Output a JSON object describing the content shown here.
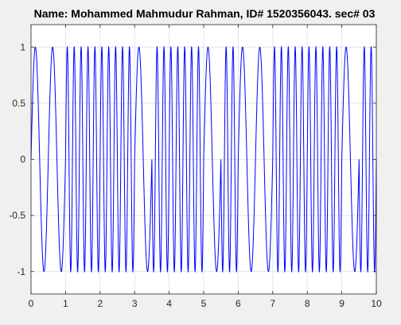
{
  "chart_data": {
    "type": "line",
    "title": "Name: Mohammed Mahmudur Rahman, ID# 1520356043. sec# 03",
    "xlabel": "",
    "ylabel": "",
    "xlim": [
      0,
      10
    ],
    "ylim": [
      -1.2,
      1.2
    ],
    "x_ticks": [
      0,
      1,
      2,
      3,
      4,
      5,
      6,
      7,
      8,
      9,
      10
    ],
    "y_ticks": [
      -1,
      -0.5,
      0,
      0.5,
      1
    ],
    "x_tick_labels": [
      "0",
      "1",
      "2",
      "3",
      "4",
      "5",
      "6",
      "7",
      "8",
      "9",
      "10"
    ],
    "y_tick_labels": [
      "-1",
      "-0.5",
      "0",
      "0.5",
      "1"
    ],
    "grid": true,
    "series": [
      {
        "color": "#0000ff",
        "function": "FSK waveform: y = sin(2*pi*f*t), amplitude 1, alternating low/high frequency",
        "segments": [
          {
            "t_start": 0,
            "t_end": 1,
            "frequency_hz": 2
          },
          {
            "t_start": 1,
            "t_end": 3,
            "frequency_hz": 5
          },
          {
            "t_start": 3,
            "t_end": 3.5,
            "frequency_hz": 2
          },
          {
            "t_start": 3.5,
            "t_end": 5,
            "frequency_hz": 5
          },
          {
            "t_start": 5,
            "t_end": 5.5,
            "frequency_hz": 2
          },
          {
            "t_start": 5.5,
            "t_end": 6,
            "frequency_hz": 5
          },
          {
            "t_start": 6,
            "t_end": 7,
            "frequency_hz": 2
          },
          {
            "t_start": 7,
            "t_end": 9,
            "frequency_hz": 5
          },
          {
            "t_start": 9,
            "t_end": 9.5,
            "frequency_hz": 2
          },
          {
            "t_start": 9.5,
            "t_end": 10,
            "frequency_hz": 5
          }
        ]
      }
    ]
  }
}
